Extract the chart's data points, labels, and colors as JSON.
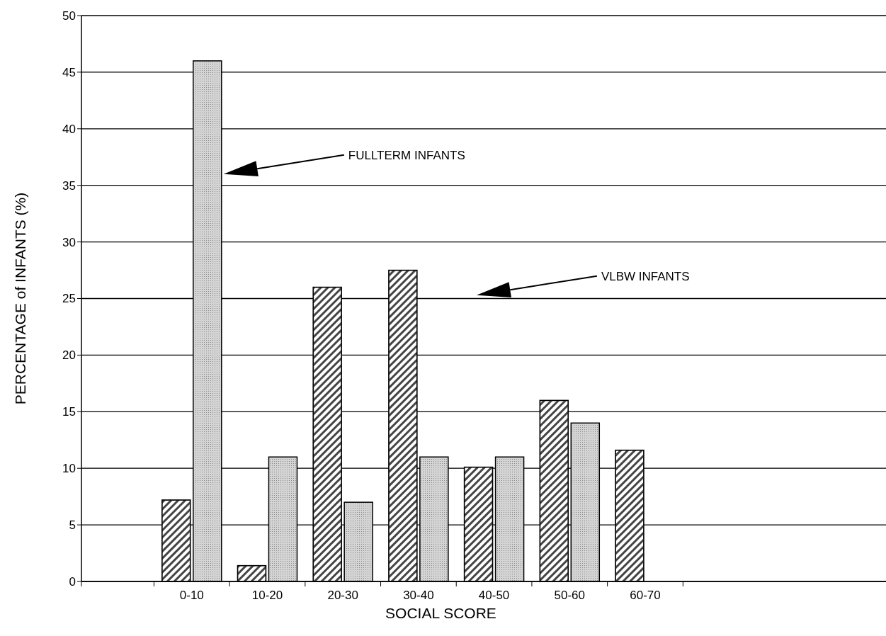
{
  "chart_data": {
    "type": "bar",
    "xlabel": "SOCIAL SCORE",
    "ylabel": "PERCENTAGE of INFANTS (%)",
    "categories": [
      "0-10",
      "10-20",
      "20-30",
      "30-40",
      "40-50",
      "50-60",
      "60-70"
    ],
    "series": [
      {
        "color": "#444444",
        "values": [
          7.2,
          1.4,
          26,
          27.5,
          10.1,
          16,
          11.6
        ]
      },
      {
        "color": "#d4d4d4",
        "values": [
          46,
          11,
          7,
          11,
          11,
          14,
          null
        ]
      }
    ],
    "ylim": [
      0,
      50
    ],
    "yticks": [
      0,
      5,
      10,
      15,
      20,
      25,
      30,
      35,
      40,
      45,
      50
    ],
    "grid": "y",
    "annotations": [
      "FULLTERM INFANTS",
      "VLBW INFANTS"
    ]
  }
}
